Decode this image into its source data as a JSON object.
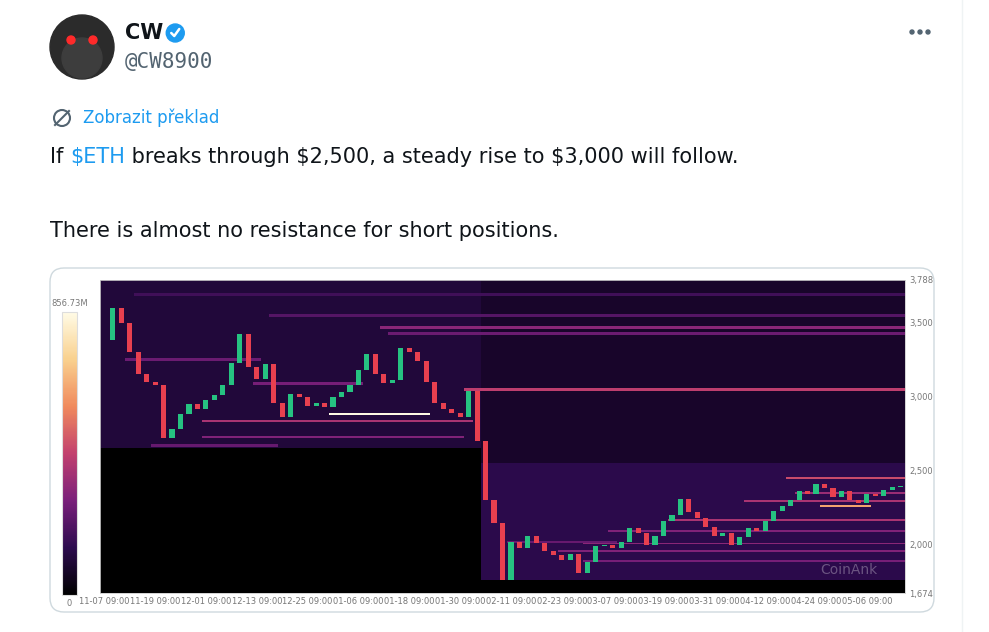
{
  "header": {
    "name": "CW",
    "handle": "@CW8900",
    "translate": "Zobrazit překlad"
  },
  "post": {
    "lines": [
      "If $ETH breaks through $2,500, a steady rise to $3,000 will follow.",
      "There is almost no resistance for short positions."
    ],
    "cashtag": "$ETH"
  },
  "chart_data": {
    "type": "heatmap",
    "annotation": "CoinAnk",
    "categories": [
      "11-07 09:00",
      null,
      null,
      null,
      null,
      null,
      "11-19 09:00",
      null,
      null,
      null,
      null,
      null,
      "12-01 09:00",
      null,
      null,
      null,
      null,
      null,
      "12-13 09:00",
      null,
      null,
      null,
      null,
      null,
      "12-25 09:00",
      null,
      null,
      null,
      null,
      null,
      "01-06 09:00",
      null,
      null,
      null,
      null,
      null,
      "01-18 09:00",
      null,
      null,
      null,
      null,
      null,
      "01-30 09:00",
      null,
      null,
      null,
      null,
      null,
      "02-11 09:00",
      null,
      null,
      null,
      null,
      null,
      "02-23 09:00",
      null,
      null,
      null,
      null,
      null,
      "03-07 09:00",
      null,
      null,
      null,
      null,
      null,
      "03-19 09:00",
      null,
      null,
      null,
      null,
      null,
      "03-31 09:00",
      null,
      null,
      null,
      null,
      null,
      "04-12 09:00",
      null,
      null,
      null,
      null,
      null,
      "04-24 09:00",
      null,
      null,
      null,
      null,
      null,
      "05-06 09:00",
      null,
      null,
      null,
      null
    ],
    "values": [
      3380,
      3600,
      3500,
      3300,
      3150,
      3100,
      3080,
      2720,
      2780,
      2880,
      2950,
      2920,
      2980,
      3010,
      3080,
      3230,
      3420,
      3200,
      3120,
      3220,
      2960,
      2860,
      3020,
      3000,
      2940,
      2960,
      2930,
      3000,
      3030,
      3080,
      3180,
      3290,
      3150,
      3090,
      3110,
      3330,
      3300,
      3240,
      3100,
      2960,
      2920,
      2890,
      2860,
      3040,
      2700,
      2300,
      2150,
      1760,
      2020,
      1980,
      2060,
      2010,
      1960,
      1930,
      1900,
      1940,
      1810,
      1880,
      1990,
      2000,
      1980,
      2020,
      2110,
      2080,
      2000,
      2060,
      2160,
      2200,
      2310,
      2220,
      2180,
      2120,
      2060,
      2080,
      2000,
      2050,
      2110,
      2090,
      2160,
      2230,
      2260,
      2300,
      2360,
      2340,
      2410,
      2380,
      2320,
      2360,
      2300,
      2280,
      2340,
      2330,
      2370,
      2390,
      2400
    ],
    "ylim": [
      1674,
      3788
    ],
    "yticks": [
      {
        "value": 1674,
        "label": "1,674"
      },
      {
        "value": 2000,
        "label": "2,000"
      },
      {
        "value": 2500,
        "label": "2,500"
      },
      {
        "value": 3000,
        "label": "3,000"
      },
      {
        "value": 3500,
        "label": "3,500"
      },
      {
        "value": 3788,
        "label": "3,788"
      }
    ],
    "cells": [
      {
        "from": 0,
        "to": 44,
        "low": 2650,
        "high": 3788,
        "value": 110
      },
      {
        "from": 45,
        "to": 94,
        "low": 1760,
        "high": 3788,
        "value": 80
      },
      {
        "from": 45,
        "to": 94,
        "low": 1760,
        "high": 2550,
        "value": 140
      },
      {
        "from": 4,
        "to": 94,
        "low": 3680,
        "high": 3700,
        "value": 180
      },
      {
        "from": 20,
        "to": 94,
        "low": 3540,
        "high": 3560,
        "value": 220
      },
      {
        "from": 33,
        "to": 94,
        "low": 3460,
        "high": 3480,
        "value": 320
      },
      {
        "from": 34,
        "to": 94,
        "low": 3420,
        "high": 3440,
        "value": 260
      },
      {
        "from": 43,
        "to": 94,
        "low": 3040,
        "high": 3060,
        "value": 420
      },
      {
        "from": 27,
        "to": 38,
        "low": 2875,
        "high": 2895,
        "value": 850
      },
      {
        "from": 12,
        "to": 43,
        "low": 2825,
        "high": 2840,
        "value": 380
      },
      {
        "from": 12,
        "to": 42,
        "low": 2720,
        "high": 2735,
        "value": 300
      },
      {
        "from": 6,
        "to": 20,
        "low": 2660,
        "high": 2680,
        "value": 250
      },
      {
        "from": 3,
        "to": 18,
        "low": 3240,
        "high": 3260,
        "value": 260
      },
      {
        "from": 18,
        "to": 30,
        "low": 3080,
        "high": 3100,
        "value": 280
      },
      {
        "from": 81,
        "to": 94,
        "low": 2440,
        "high": 2460,
        "value": 450
      },
      {
        "from": 82,
        "to": 94,
        "low": 2340,
        "high": 2355,
        "value": 350
      },
      {
        "from": 76,
        "to": 94,
        "low": 2290,
        "high": 2305,
        "value": 380
      },
      {
        "from": 85,
        "to": 90,
        "low": 2250,
        "high": 2265,
        "value": 620
      },
      {
        "from": 67,
        "to": 94,
        "low": 2160,
        "high": 2175,
        "value": 380
      },
      {
        "from": 60,
        "to": 94,
        "low": 2080,
        "high": 2095,
        "value": 300
      },
      {
        "from": 57,
        "to": 94,
        "low": 2000,
        "high": 2012,
        "value": 320
      },
      {
        "from": 54,
        "to": 94,
        "low": 1950,
        "high": 1962,
        "value": 300
      },
      {
        "from": 57,
        "to": 94,
        "low": 1880,
        "high": 1895,
        "value": 280
      },
      {
        "from": 48,
        "to": 60,
        "low": 2010,
        "high": 2025,
        "value": 250
      }
    ],
    "colorbar": {
      "range": [
        0,
        856.73
      ],
      "ticks": [
        0,
        {
          "value": 856.73,
          "label": "856.73M"
        }
      ]
    }
  }
}
